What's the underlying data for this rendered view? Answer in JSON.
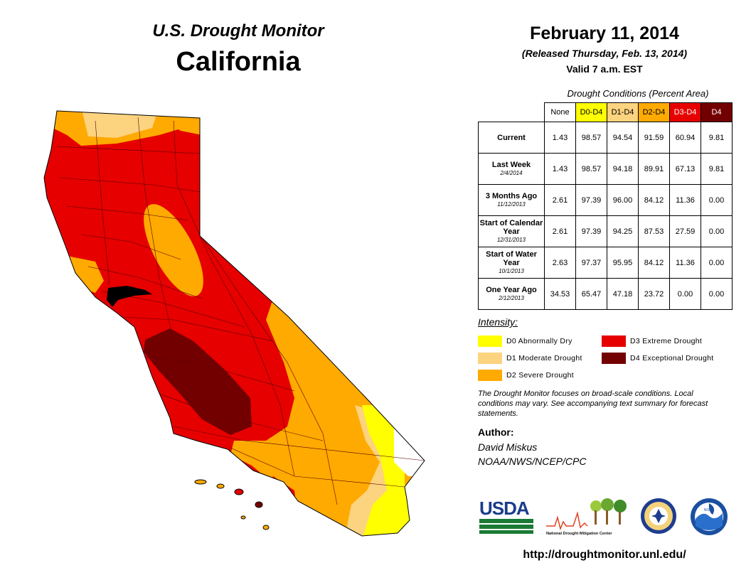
{
  "header": {
    "subtitle": "U.S. Drought Monitor",
    "state": "California",
    "date": "February 11, 2014",
    "released": "(Released Thursday, Feb. 13, 2014)",
    "valid": "Valid 7 a.m. EST"
  },
  "conditions": {
    "title": "Drought Conditions (Percent Area)",
    "columns": [
      "None",
      "D0-D4",
      "D1-D4",
      "D2-D4",
      "D3-D4",
      "D4"
    ],
    "column_colors": [
      "#ffffff",
      "#ffff00",
      "#fcd37f",
      "#ffaa00",
      "#e60000",
      "#730000"
    ],
    "rows": [
      {
        "label": "Current",
        "sub": "",
        "values": [
          "1.43",
          "98.57",
          "94.54",
          "91.59",
          "60.94",
          "9.81"
        ]
      },
      {
        "label": "Last Week",
        "sub": "2/4/2014",
        "values": [
          "1.43",
          "98.57",
          "94.18",
          "89.91",
          "67.13",
          "9.81"
        ]
      },
      {
        "label": "3 Months Ago",
        "sub": "11/12/2013",
        "values": [
          "2.61",
          "97.39",
          "96.00",
          "84.12",
          "11.36",
          "0.00"
        ]
      },
      {
        "label": "Start of Calendar Year",
        "sub": "12/31/2013",
        "values": [
          "2.61",
          "97.39",
          "94.25",
          "87.53",
          "27.59",
          "0.00"
        ]
      },
      {
        "label": "Start of Water Year",
        "sub": "10/1/2013",
        "values": [
          "2.63",
          "97.37",
          "95.95",
          "84.12",
          "11.36",
          "0.00"
        ]
      },
      {
        "label": "One Year Ago",
        "sub": "2/12/2013",
        "values": [
          "34.53",
          "65.47",
          "47.18",
          "23.72",
          "0.00",
          "0.00"
        ]
      }
    ]
  },
  "legend": {
    "title": "Intensity:",
    "items": [
      {
        "label": "D0 Abnormally Dry",
        "color": "#ffff00"
      },
      {
        "label": "D1 Moderate Drought",
        "color": "#fcd37f"
      },
      {
        "label": "D2 Severe Drought",
        "color": "#ffaa00"
      },
      {
        "label": "D3 Extreme Drought",
        "color": "#e60000"
      },
      {
        "label": "D4 Exceptional Drought",
        "color": "#730000"
      }
    ]
  },
  "note": "The Drought Monitor focuses on broad-scale conditions. Local conditions may vary. See accompanying text summary for forecast statements.",
  "author": {
    "heading": "Author:",
    "name": "David Miskus",
    "org": "NOAA/NWS/NCEP/CPC"
  },
  "logos": {
    "usda": "USDA",
    "ndmc": "National Drought Mitigation Center",
    "noaa": "NOAA"
  },
  "url": "http://droughtmonitor.unl.edu/"
}
